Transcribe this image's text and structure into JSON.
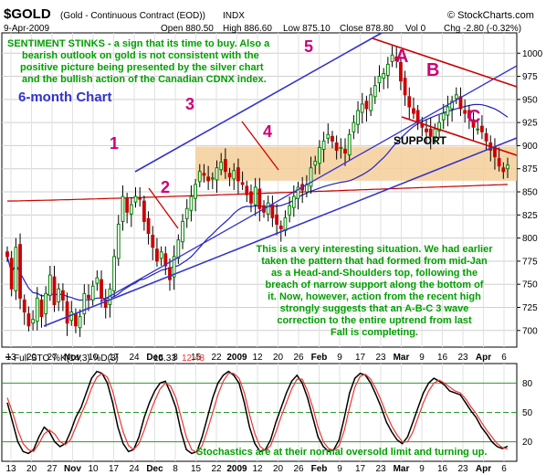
{
  "header": {
    "symbol": "$GOLD",
    "description": "(Gold - Continuous Contract (EOD))",
    "exchange": "INDX",
    "source": "© StockCharts.com",
    "date": "9-Apr-2009",
    "ohlc": "Open 880.50   High 886.60   Low 875.10   Close 878.80   Vol 0   Chg -2.80 (-0.32%)",
    "ohlc_parts": [
      "Open 880.50",
      "High 886.60",
      "Low 875.10",
      "Close 878.80",
      "Vol 0",
      "Chg -2.80 (-0.32%)"
    ]
  },
  "annotations": {
    "sentiment": [
      "SENTIMENT STINKS - a sign that its time to buy. Also a",
      "bearish outlook on gold is not consistent with the",
      "positive picture being presented by the silver chart",
      "and the bullish action of the Canadian CDNX index."
    ],
    "six_month": "6-month Chart",
    "wave_labels": [
      "1",
      "2",
      "3",
      "4",
      "5"
    ],
    "abc_labels": [
      "A",
      "B",
      "C"
    ],
    "support": "SUPPORT",
    "situation": [
      "This is a very interesting situation. We had earlier",
      "taken the pattern that had formed from mid-Jan",
      "as a Head-and-Shoulders top, following the",
      "breach of narrow support along the bottom of",
      "it. Now, however, action from the recent high",
      "strongly suggests that an A-B-C 3 wave",
      "correction to the entire uptrend from last",
      "Fall is completing."
    ],
    "stochastics": "Stochastics are at their normal oversold limit and turning up."
  },
  "colors": {
    "candle_up": "#008000",
    "candle_down": "#cc0000",
    "channel_blue": "#3333cc",
    "abc_red": "#cc0000",
    "support_zone": "#f5cf9a",
    "ma_red": "#cc0000",
    "ma_blue": "#2222bb",
    "annotation_green": "#00a000",
    "wave_magenta": "#cc0077",
    "sto_k": "#000000",
    "sto_d": "#ee3333"
  },
  "chart_data": [
    {
      "type": "candlestick",
      "title": "$GOLD",
      "ylim": [
        682,
        1022
      ],
      "y_ticks": [
        700,
        725,
        750,
        775,
        800,
        825,
        850,
        875,
        900,
        925,
        950,
        975,
        1000
      ],
      "x_tick_labels": [
        "13",
        "20",
        "27",
        "Nov",
        "10",
        "17",
        "24",
        "Dec",
        "8",
        "15",
        "22",
        "2009",
        "12",
        "20",
        "26",
        "Feb",
        "9",
        "17",
        "23",
        "Mar",
        "9",
        "16",
        "23",
        "Apr",
        "6"
      ],
      "bold_x_tick_labels": [
        "Nov",
        "Dec",
        "2009",
        "Feb",
        "Mar",
        "Apr"
      ],
      "series": [
        {
          "name": "Close",
          "values": [
            780,
            745,
            790,
            735,
            720,
            705,
            712,
            735,
            715,
            740,
            760,
            728,
            745,
            733,
            708,
            720,
            705,
            715,
            740,
            735,
            748,
            757,
            735,
            725,
            745,
            780,
            815,
            845,
            828,
            836,
            845,
            842,
            818,
            805,
            790,
            775,
            785,
            770,
            755,
            780,
            798,
            818,
            832,
            845,
            858,
            872,
            868,
            862,
            865,
            876,
            882,
            872,
            866,
            873,
            862,
            858,
            847,
            838,
            855,
            832,
            828,
            838,
            822,
            815,
            810,
            822,
            835,
            845,
            855,
            852,
            858,
            876,
            883,
            898,
            905,
            912,
            905,
            895,
            898,
            892,
            912,
            925,
            938,
            945,
            940,
            955,
            965,
            975,
            978,
            988,
            998,
            992,
            970,
            955,
            942,
            935,
            925,
            920,
            915,
            910,
            918,
            925,
            935,
            942,
            948,
            955,
            940,
            935,
            930,
            920,
            918,
            915,
            905,
            895,
            888,
            878,
            872,
            879
          ]
        }
      ]
    },
    {
      "type": "line",
      "title": "Full STO %K(14,3) %D(3) 15.33, 12.48",
      "legend": "Full STO %K(14,3) %D(3)",
      "last_values": [
        "15.33",
        "12.48"
      ],
      "ylim": [
        0,
        100
      ],
      "y_ticks": [
        20,
        50,
        80
      ],
      "grid_lines": [
        20,
        50,
        80
      ],
      "series": [
        {
          "name": "%K",
          "values": [
            60,
            40,
            20,
            10,
            8,
            12,
            25,
            35,
            30,
            20,
            15,
            18,
            30,
            45,
            55,
            70,
            85,
            92,
            90,
            80,
            60,
            35,
            18,
            10,
            12,
            25,
            45,
            60,
            72,
            80,
            82,
            70,
            55,
            30,
            12,
            8,
            10,
            25,
            45,
            65,
            80,
            88,
            92,
            88,
            80,
            60,
            35,
            18,
            10,
            12,
            22,
            40,
            55,
            70,
            82,
            88,
            80,
            65,
            45,
            25,
            15,
            10,
            12,
            22,
            45,
            70,
            85,
            90,
            88,
            80,
            68,
            55,
            40,
            30,
            22,
            18,
            25,
            40,
            55,
            70,
            80,
            85,
            82,
            78,
            72,
            70,
            68,
            60,
            52,
            45,
            35,
            28,
            20,
            15,
            13,
            15.33
          ]
        },
        {
          "name": "%D",
          "values": [
            65,
            50,
            32,
            18,
            12,
            10,
            18,
            28,
            32,
            28,
            20,
            17,
            22,
            35,
            48,
            60,
            75,
            86,
            90,
            86,
            72,
            50,
            30,
            16,
            12,
            18,
            32,
            48,
            62,
            74,
            80,
            77,
            65,
            45,
            25,
            12,
            9,
            16,
            32,
            50,
            68,
            82,
            90,
            90,
            85,
            70,
            48,
            28,
            15,
            11,
            16,
            30,
            46,
            60,
            74,
            84,
            84,
            72,
            55,
            35,
            20,
            13,
            11,
            16,
            32,
            55,
            76,
            87,
            89,
            84,
            74,
            62,
            48,
            36,
            27,
            20,
            20,
            30,
            45,
            60,
            72,
            80,
            83,
            80,
            76,
            72,
            70,
            64,
            56,
            49,
            40,
            32,
            25,
            18,
            14,
            12.48
          ]
        }
      ]
    }
  ]
}
